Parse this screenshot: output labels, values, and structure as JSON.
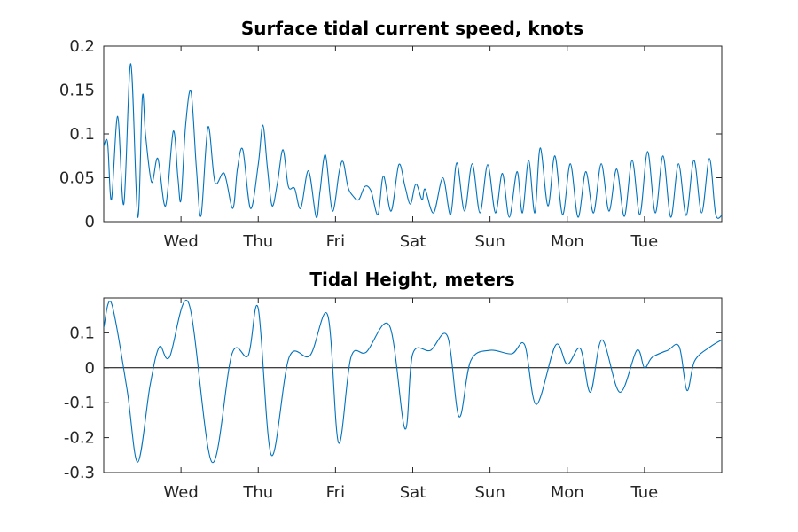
{
  "chart_data": [
    {
      "type": "line",
      "title": "Surface tidal current speed, knots",
      "xlabel": "",
      "ylabel": "",
      "x_tick_labels": [
        "Wed",
        "Thu",
        "Fri",
        "Sat",
        "Sun",
        "Mon",
        "Tue"
      ],
      "x_tick_days": [
        1,
        2,
        3,
        4,
        5,
        6,
        7
      ],
      "xlim_days": [
        0,
        8
      ],
      "ylim": [
        0,
        0.2
      ],
      "y_ticks": [
        0,
        0.05,
        0.1,
        0.15,
        0.2
      ],
      "y_tick_labels": [
        "0",
        "0.05",
        "0.1",
        "0.15",
        "0.2"
      ],
      "grid": false,
      "color": "#0072bd",
      "series": [
        {
          "x": [
            0.0,
            0.05,
            0.1,
            0.18,
            0.26,
            0.35,
            0.44,
            0.5,
            0.54,
            0.62,
            0.7,
            0.8,
            0.9,
            0.96,
            1.0,
            1.06,
            1.13,
            1.2,
            1.26,
            1.35,
            1.44,
            1.56,
            1.67,
            1.73,
            1.8,
            1.9,
            2.0,
            2.06,
            2.12,
            2.18,
            2.25,
            2.32,
            2.39,
            2.47,
            2.55,
            2.65,
            2.75,
            2.8,
            2.87,
            2.96,
            3.05,
            3.1,
            3.16,
            3.22,
            3.3,
            3.38,
            3.46,
            3.55,
            3.62,
            3.72,
            3.82,
            3.9,
            3.97,
            4.04,
            4.12,
            4.16,
            4.27,
            4.39,
            4.49,
            4.57,
            4.67,
            4.77,
            4.87,
            4.97,
            5.07,
            5.16,
            5.25,
            5.35,
            5.42,
            5.5,
            5.58,
            5.65,
            5.75,
            5.84,
            5.94,
            6.04,
            6.14,
            6.24,
            6.34,
            6.44,
            6.54,
            6.64,
            6.74,
            6.84,
            6.94,
            7.04,
            7.14,
            7.24,
            7.34,
            7.44,
            7.54,
            7.64,
            7.74,
            7.84,
            7.92,
            8.0
          ],
          "y": [
            0.086,
            0.09,
            0.025,
            0.12,
            0.02,
            0.18,
            0.005,
            0.142,
            0.1,
            0.045,
            0.072,
            0.018,
            0.103,
            0.05,
            0.025,
            0.11,
            0.148,
            0.06,
            0.007,
            0.108,
            0.045,
            0.055,
            0.015,
            0.06,
            0.082,
            0.015,
            0.065,
            0.11,
            0.06,
            0.018,
            0.045,
            0.082,
            0.04,
            0.038,
            0.015,
            0.058,
            0.005,
            0.035,
            0.076,
            0.012,
            0.058,
            0.068,
            0.04,
            0.03,
            0.025,
            0.04,
            0.035,
            0.008,
            0.052,
            0.012,
            0.065,
            0.04,
            0.02,
            0.043,
            0.025,
            0.037,
            0.01,
            0.05,
            0.008,
            0.067,
            0.012,
            0.066,
            0.01,
            0.065,
            0.01,
            0.055,
            0.005,
            0.057,
            0.01,
            0.07,
            0.01,
            0.084,
            0.018,
            0.075,
            0.008,
            0.066,
            0.005,
            0.057,
            0.01,
            0.066,
            0.012,
            0.06,
            0.006,
            0.07,
            0.008,
            0.08,
            0.01,
            0.075,
            0.005,
            0.066,
            0.007,
            0.07,
            0.01,
            0.072,
            0.009,
            0.007
          ]
        }
      ]
    },
    {
      "type": "line",
      "title": "Tidal Height, meters",
      "xlabel": "",
      "ylabel": "",
      "x_tick_labels": [
        "Wed",
        "Thu",
        "Fri",
        "Sat",
        "Sun",
        "Mon",
        "Tue"
      ],
      "x_tick_days": [
        1,
        2,
        3,
        4,
        5,
        6,
        7
      ],
      "xlim_days": [
        0,
        8
      ],
      "ylim": [
        -0.3,
        0.2
      ],
      "y_ticks": [
        -0.3,
        -0.2,
        -0.1,
        0,
        0.1
      ],
      "y_tick_labels": [
        "-0.3",
        "-0.2",
        "-0.1",
        "0",
        "0.1"
      ],
      "reference_line_y": 0,
      "grid": false,
      "color": "#0072bd",
      "series": [
        {
          "x": [
            0.0,
            0.1,
            0.3,
            0.44,
            0.6,
            0.72,
            0.85,
            1.1,
            1.4,
            1.66,
            1.87,
            2.0,
            2.17,
            2.4,
            2.67,
            2.9,
            3.04,
            3.2,
            3.4,
            3.7,
            3.9,
            4.0,
            4.23,
            4.45,
            4.6,
            4.75,
            5.0,
            5.28,
            5.45,
            5.6,
            5.85,
            6.0,
            6.17,
            6.3,
            6.45,
            6.68,
            6.9,
            7.0,
            7.1,
            7.3,
            7.45,
            7.55,
            7.65,
            7.85,
            8.0
          ],
          "y": [
            0.115,
            0.185,
            -0.06,
            -0.27,
            -0.05,
            0.06,
            0.03,
            0.185,
            -0.27,
            0.04,
            0.035,
            0.17,
            -0.25,
            0.03,
            0.035,
            0.15,
            -0.215,
            0.03,
            0.045,
            0.12,
            -0.175,
            0.04,
            0.05,
            0.09,
            -0.14,
            0.02,
            0.05,
            0.04,
            0.065,
            -0.105,
            0.065,
            0.01,
            0.055,
            -0.07,
            0.08,
            -0.07,
            0.05,
            0.0,
            0.03,
            0.05,
            0.06,
            -0.065,
            0.02,
            0.06,
            0.08
          ]
        }
      ]
    }
  ]
}
